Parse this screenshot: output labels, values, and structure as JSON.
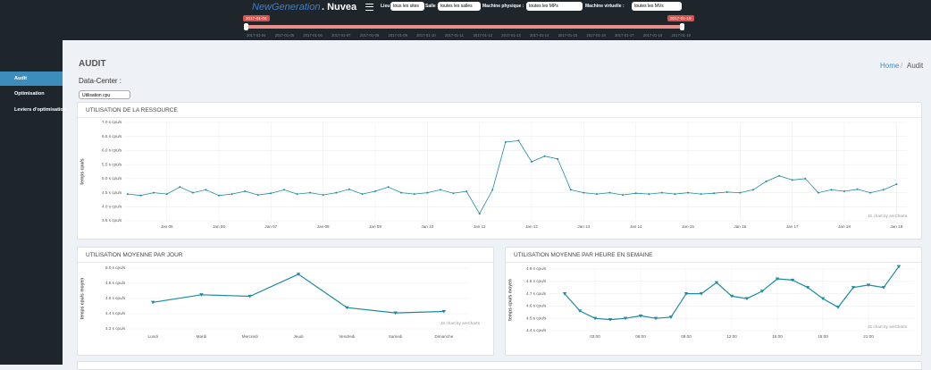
{
  "header": {
    "brand": "NewGeneration",
    "brand_suffix": ". Nuvea",
    "filters": [
      {
        "label": "Lieu :",
        "value": "tous les sites"
      },
      {
        "label": "Salle :",
        "value": "toutes les salles"
      },
      {
        "label": "Machine physique :",
        "value": "toutes les MPs"
      },
      {
        "label": "Machine virtuelle :",
        "value": "toutes les MVs"
      }
    ],
    "range_start": "2017-01-04",
    "range_end": "2017-01-19",
    "timeline": [
      "2017-01-04",
      "2017-01-05",
      "2017-01-06",
      "2017-01-07",
      "2017-01-08",
      "2017-01-09",
      "2017-01-10",
      "2017-01-11",
      "2017-01-12",
      "2017-01-13",
      "2017-01-14",
      "2017-01-15",
      "2017-01-16",
      "2017-01-17",
      "2017-01-18",
      "2017-01-19"
    ]
  },
  "sidebar": [
    "Audit",
    "Optimisation",
    "Leviers d'optimisation"
  ],
  "page": {
    "title": "AUDIT",
    "breadcrumb": [
      "Home",
      "Audit"
    ],
    "section": "Data-Center :",
    "select": "Utilisation cpu"
  },
  "chart_data": [
    {
      "type": "line",
      "title": "UTILISATION DE LA RESSOURCE",
      "y_label": "temps cpu/s",
      "credit": "JS chart by amCharts",
      "color": "#1f8a9e",
      "grid": true,
      "xlim": [
        4.2,
        19.2
      ],
      "ylim": [
        3.5,
        7.0
      ],
      "xticks": [
        {
          "value": 5,
          "label": "Jan 05"
        },
        {
          "value": 6,
          "label": "Jan 06"
        },
        {
          "value": 7,
          "label": "Jan 07"
        },
        {
          "value": 8,
          "label": "Jan 08"
        },
        {
          "value": 9,
          "label": "Jan 09"
        },
        {
          "value": 10,
          "label": "Jan 10"
        },
        {
          "value": 11,
          "label": "Jan 11"
        },
        {
          "value": 12,
          "label": "Jan 12"
        },
        {
          "value": 13,
          "label": "Jan 13"
        },
        {
          "value": 14,
          "label": "Jan 14"
        },
        {
          "value": 15,
          "label": "Jan 15"
        },
        {
          "value": 16,
          "label": "Jan 16"
        },
        {
          "value": 17,
          "label": "Jan 17"
        },
        {
          "value": 18,
          "label": "Jan 18"
        },
        {
          "value": 19,
          "label": "Jan 19"
        }
      ],
      "yticks": [
        {
          "value": 3.5,
          "label": "3.5 s cpu/s"
        },
        {
          "value": 4.0,
          "label": "4.0 s cpu/s"
        },
        {
          "value": 4.5,
          "label": "4.5 s cpu/s"
        },
        {
          "value": 5.0,
          "label": "5.0 s cpu/s"
        },
        {
          "value": 5.5,
          "label": "5.5 s cpu/s"
        },
        {
          "value": 6.0,
          "label": "6.0 s cpu/s"
        },
        {
          "value": 6.5,
          "label": "6.5 s cpu/s"
        },
        {
          "value": 7.0,
          "label": "7.0 s cpu/s"
        }
      ],
      "x": [
        4.25,
        4.5,
        4.75,
        5,
        5.25,
        5.5,
        5.75,
        6,
        6.25,
        6.5,
        6.75,
        7,
        7.25,
        7.5,
        7.75,
        8,
        8.25,
        8.5,
        8.75,
        9,
        9.25,
        9.5,
        9.75,
        10,
        10.25,
        10.5,
        10.75,
        11,
        11.25,
        11.5,
        11.75,
        12,
        12.25,
        12.5,
        12.75,
        13,
        13.25,
        13.5,
        13.75,
        14,
        14.25,
        14.5,
        14.75,
        15,
        15.25,
        15.5,
        15.75,
        16,
        16.25,
        16.5,
        16.75,
        17,
        17.25,
        17.5,
        17.75,
        18,
        18.25,
        18.5,
        18.75,
        19
      ],
      "series": [
        {
          "name": "temps cpu/s",
          "values": [
            4.45,
            4.4,
            4.5,
            4.45,
            4.7,
            4.5,
            4.6,
            4.4,
            4.45,
            4.55,
            4.42,
            4.48,
            4.6,
            4.45,
            4.5,
            4.42,
            4.5,
            4.62,
            4.45,
            4.55,
            4.7,
            4.5,
            4.45,
            4.5,
            4.6,
            4.48,
            4.55,
            3.75,
            4.6,
            6.3,
            6.35,
            5.6,
            5.8,
            5.7,
            4.6,
            4.5,
            4.45,
            4.5,
            4.42,
            4.48,
            4.45,
            4.5,
            4.45,
            4.5,
            4.45,
            4.48,
            4.52,
            4.5,
            4.6,
            4.9,
            5.1,
            4.95,
            5.0,
            4.5,
            4.6,
            4.55,
            4.62,
            4.5,
            4.6,
            4.8
          ]
        }
      ]
    },
    {
      "type": "line",
      "title": "UTILISATION MOYENNE PAR JOUR",
      "y_label": "temps cpu/s moyen",
      "credit": "JS chart by amCharts",
      "color": "#1d8aa0",
      "grid": true,
      "ylim": [
        4.2,
        5.0
      ],
      "yticks": [
        {
          "value": 4.2,
          "label": "4.2 s cpu/s"
        },
        {
          "value": 4.4,
          "label": "4.4 s cpu/s"
        },
        {
          "value": 4.6,
          "label": "4.6 s cpu/s"
        },
        {
          "value": 4.8,
          "label": "4.8 s cpu/s"
        },
        {
          "value": 5.0,
          "label": "5.0 s cpu/s"
        }
      ],
      "categories": [
        "Lundi",
        "Mardi",
        "Mercredi",
        "Jeudi",
        "Vendredi",
        "Samedi",
        "Dimanche"
      ],
      "series": [
        {
          "name": "temps cpu/s moyen",
          "values": [
            4.55,
            4.65,
            4.63,
            4.92,
            4.48,
            4.41,
            4.43
          ]
        }
      ]
    },
    {
      "type": "line",
      "title": "UTILISATION MOYENNE PAR HEURE EN SEMAINE",
      "y_label": "temps cpu/s moyen",
      "credit": "JS chart by amCharts",
      "color": "#1d8aa0",
      "grid": true,
      "xlim": [
        0,
        24
      ],
      "ylim": [
        4.4,
        4.9
      ],
      "xticks": [
        {
          "value": 3,
          "label": "03:00"
        },
        {
          "value": 6,
          "label": "06:00"
        },
        {
          "value": 9,
          "label": "09:00"
        },
        {
          "value": 12,
          "label": "12:00"
        },
        {
          "value": 15,
          "label": "15:00"
        },
        {
          "value": 18,
          "label": "18:00"
        },
        {
          "value": 21,
          "label": "21:00"
        }
      ],
      "yticks": [
        {
          "value": 4.4,
          "label": "4.4 s cpu/s"
        },
        {
          "value": 4.5,
          "label": "4.5 s cpu/s"
        },
        {
          "value": 4.6,
          "label": "4.6 s cpu/s"
        },
        {
          "value": 4.7,
          "label": "4.7 s cpu/s"
        },
        {
          "value": 4.8,
          "label": "4.8 s cpu/s"
        },
        {
          "value": 4.9,
          "label": "4.9 s cpu/s"
        }
      ],
      "x": [
        1,
        2,
        3,
        4,
        5,
        6,
        7,
        8,
        9,
        10,
        11,
        12,
        13,
        14,
        15,
        16,
        17,
        18,
        19,
        20,
        21,
        22,
        23
      ],
      "series": [
        {
          "name": "temps cpu/s moyen",
          "values": [
            4.7,
            4.56,
            4.5,
            4.49,
            4.5,
            4.52,
            4.5,
            4.51,
            4.7,
            4.7,
            4.79,
            4.68,
            4.66,
            4.72,
            4.82,
            4.81,
            4.75,
            4.66,
            4.59,
            4.75,
            4.77,
            4.75,
            4.92
          ]
        }
      ]
    }
  ]
}
